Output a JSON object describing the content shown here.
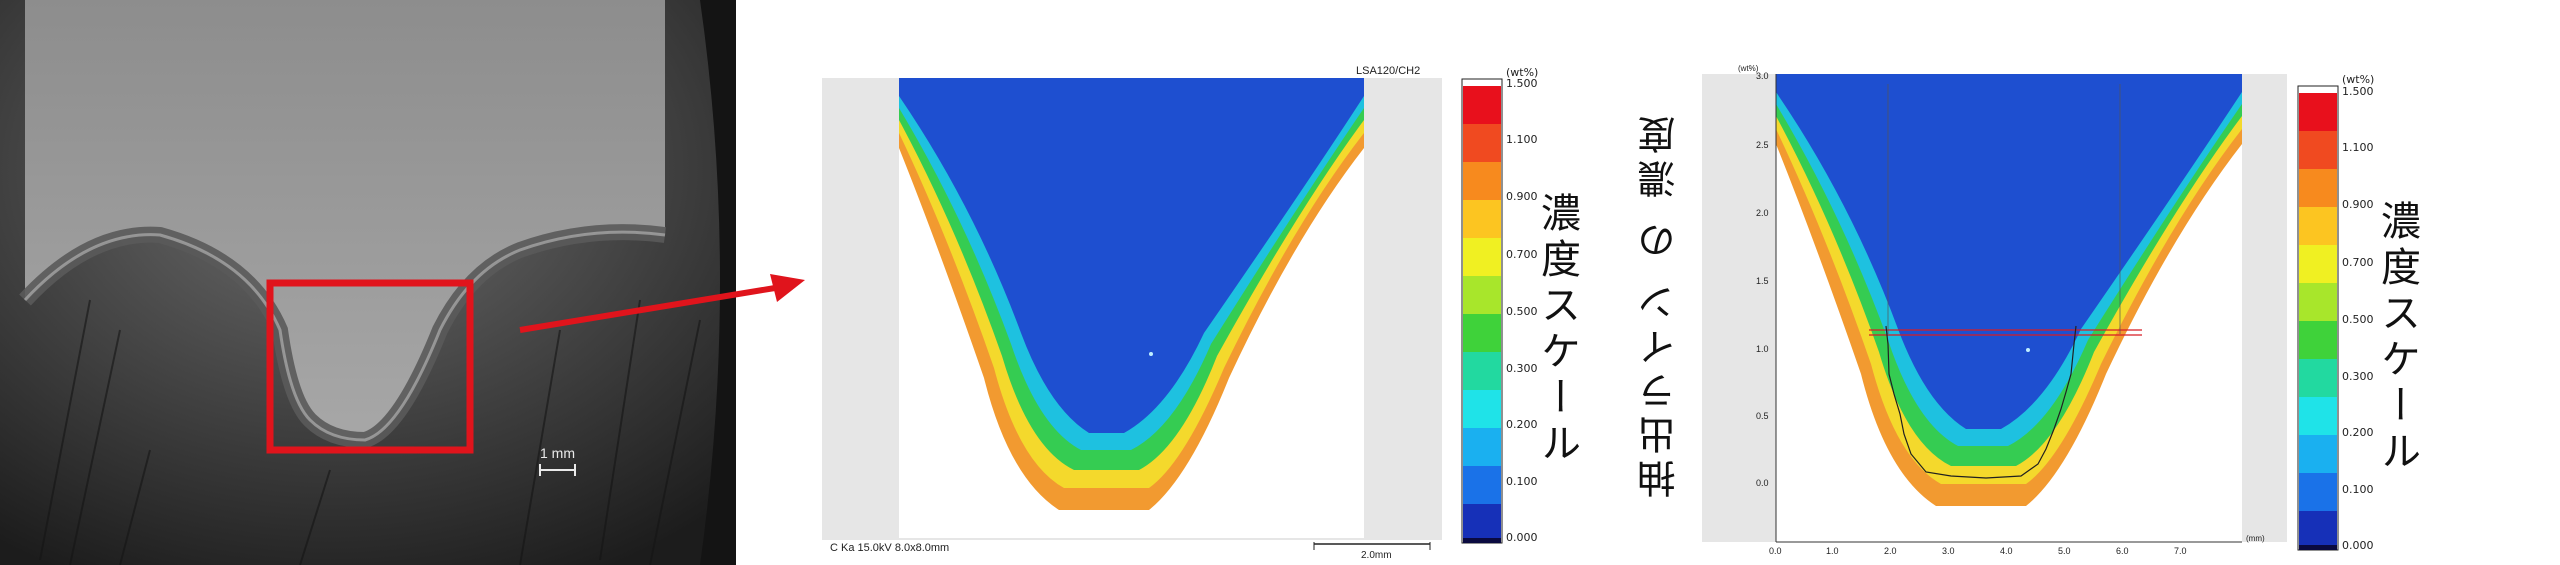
{
  "panel_left": {
    "scale_bar_label": "1 mm"
  },
  "panel_middle": {
    "top_label": "LSA120/CH2",
    "bottom_info": "C Ka 15.0kV 8.0x8.0mm",
    "scale_bar_label": "2.0mm",
    "colorbar_unit": "(wt%)",
    "colorbar_ticks": [
      "1.500",
      "1.100",
      "0.900",
      "0.700",
      "0.500",
      "0.300",
      "0.200",
      "0.100",
      "0.000"
    ],
    "colorbar_title": "濃度スケール"
  },
  "panel_right": {
    "vertical_caption": "抽出ライン の 濃度",
    "y_unit": "(wt%)",
    "x_unit": "(mm)",
    "y_ticks": [
      "3.0",
      "2.5",
      "2.0",
      "1.5",
      "1.0",
      "0.5",
      "0.0"
    ],
    "x_ticks": [
      "0.0",
      "1.0",
      "2.0",
      "3.0",
      "4.0",
      "5.0",
      "6.0",
      "7.0"
    ],
    "colorbar_unit": "(wt%)",
    "colorbar_ticks": [
      "1.500",
      "1.100",
      "0.900",
      "0.700",
      "0.500",
      "0.300",
      "0.200",
      "0.100",
      "0.000"
    ],
    "colorbar_title": "濃度スケール"
  },
  "colors": {
    "highlight_red": "#e0141c",
    "map_blue": "#1e4fd0",
    "map_green": "#22c84a",
    "map_orange": "#f08a2a"
  }
}
